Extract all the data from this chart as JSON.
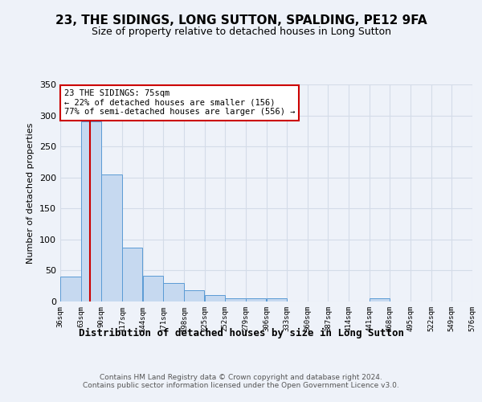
{
  "title": "23, THE SIDINGS, LONG SUTTON, SPALDING, PE12 9FA",
  "subtitle": "Size of property relative to detached houses in Long Sutton",
  "xlabel": "Distribution of detached houses by size in Long Sutton",
  "ylabel": "Number of detached properties",
  "bar_color": "#c6d9f0",
  "bar_edge_color": "#5b9bd5",
  "vline_color": "#cc0000",
  "vline_x": 75,
  "annotation_text": "23 THE SIDINGS: 75sqm\n← 22% of detached houses are smaller (156)\n77% of semi-detached houses are larger (556) →",
  "annotation_box_color": "white",
  "annotation_box_edge_color": "#cc0000",
  "bins": [
    36,
    63,
    90,
    117,
    144,
    171,
    198,
    225,
    252,
    279,
    306,
    333,
    360,
    387,
    414,
    441,
    468,
    495,
    522,
    549,
    576
  ],
  "bar_heights": [
    40,
    290,
    205,
    87,
    42,
    30,
    18,
    10,
    5,
    5,
    5,
    0,
    0,
    0,
    0,
    5,
    0,
    0,
    0,
    0
  ],
  "ylim": [
    0,
    350
  ],
  "yticks": [
    0,
    50,
    100,
    150,
    200,
    250,
    300,
    350
  ],
  "grid_color": "#d4dce8",
  "footer": "Contains HM Land Registry data © Crown copyright and database right 2024.\nContains public sector information licensed under the Open Government Licence v3.0.",
  "background_color": "#eef2f9",
  "plot_background_color": "#eef2f9",
  "tick_labels": [
    "36sqm",
    "63sqm",
    "90sqm",
    "117sqm",
    "144sqm",
    "171sqm",
    "198sqm",
    "225sqm",
    "252sqm",
    "279sqm",
    "306sqm",
    "333sqm",
    "360sqm",
    "387sqm",
    "414sqm",
    "441sqm",
    "468sqm",
    "495sqm",
    "522sqm",
    "549sqm",
    "576sqm"
  ]
}
